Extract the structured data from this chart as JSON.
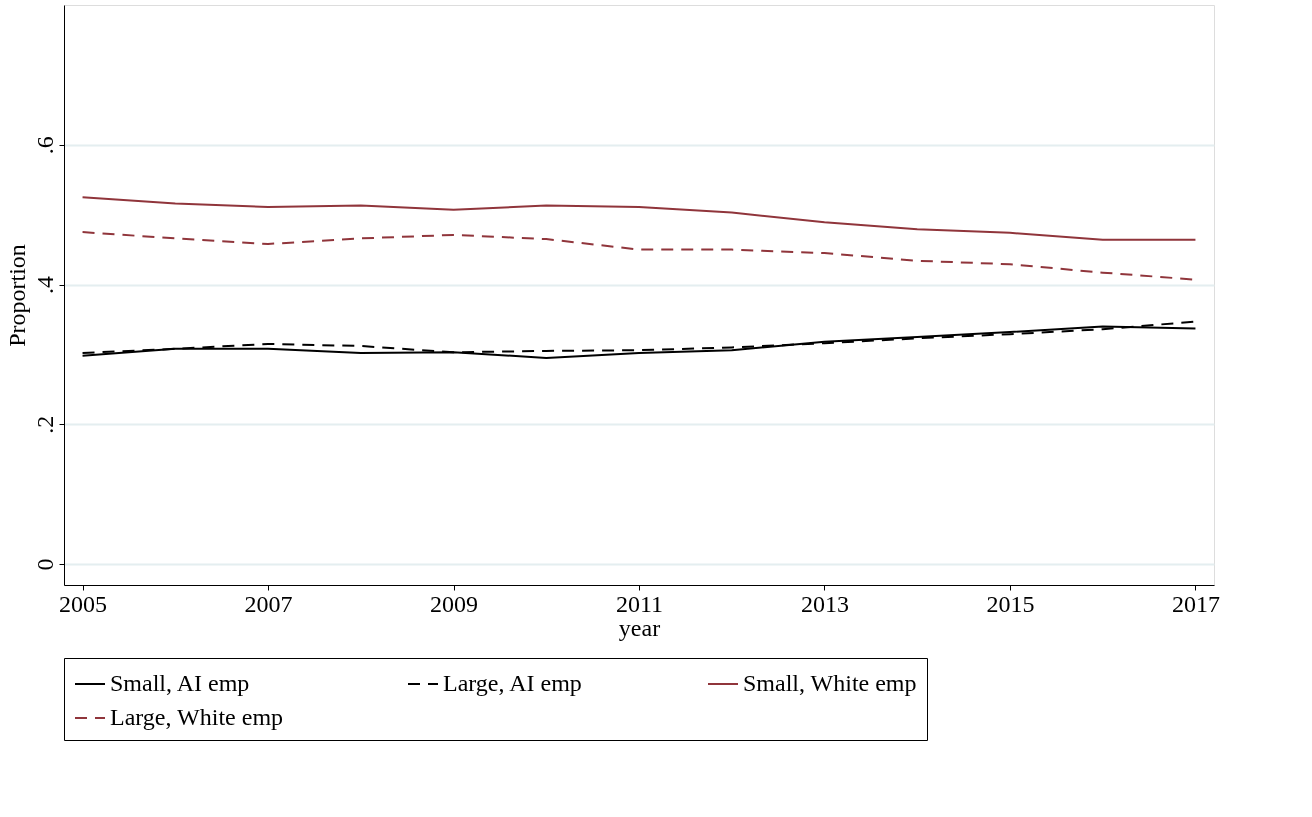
{
  "chart_data": {
    "type": "line",
    "xlabel": "year",
    "ylabel": "Proportion",
    "x": [
      2005,
      2006,
      2007,
      2008,
      2009,
      2010,
      2011,
      2012,
      2013,
      2014,
      2015,
      2016,
      2017
    ],
    "series": [
      {
        "name": "Small, AI emp",
        "color": "#000000",
        "line_style": "solid",
        "values": [
          0.298,
          0.308,
          0.308,
          0.302,
          0.303,
          0.295,
          0.302,
          0.306,
          0.318,
          0.325,
          0.332,
          0.34,
          0.337
        ]
      },
      {
        "name": "Large, AI emp",
        "color": "#000000",
        "line_style": "dashed",
        "values": [
          0.302,
          0.308,
          0.315,
          0.312,
          0.303,
          0.305,
          0.306,
          0.31,
          0.316,
          0.323,
          0.329,
          0.336,
          0.347
        ]
      },
      {
        "name": "Small, White emp",
        "color": "#90353b",
        "line_style": "solid",
        "values": [
          0.525,
          0.516,
          0.511,
          0.513,
          0.507,
          0.513,
          0.511,
          0.503,
          0.489,
          0.479,
          0.474,
          0.464,
          0.464
        ]
      },
      {
        "name": "Large, White emp",
        "color": "#90353b",
        "line_style": "dashed",
        "values": [
          0.475,
          0.466,
          0.458,
          0.466,
          0.471,
          0.465,
          0.45,
          0.45,
          0.445,
          0.434,
          0.429,
          0.417,
          0.407
        ]
      }
    ],
    "xlim": [
      2004.8,
      2017.2
    ],
    "xticks": [
      2005,
      2007,
      2009,
      2011,
      2013,
      2015,
      2017
    ],
    "ylim": [
      -0.03,
      0.8
    ],
    "yticks": [
      {
        "value": 0,
        "label": "0"
      },
      {
        "value": 0.2,
        "label": ".2"
      },
      {
        "value": 0.4,
        "label": ".4"
      },
      {
        "value": 0.6,
        "label": ".6"
      }
    ],
    "grid": "y",
    "legend": "bottom",
    "marker": "none"
  }
}
